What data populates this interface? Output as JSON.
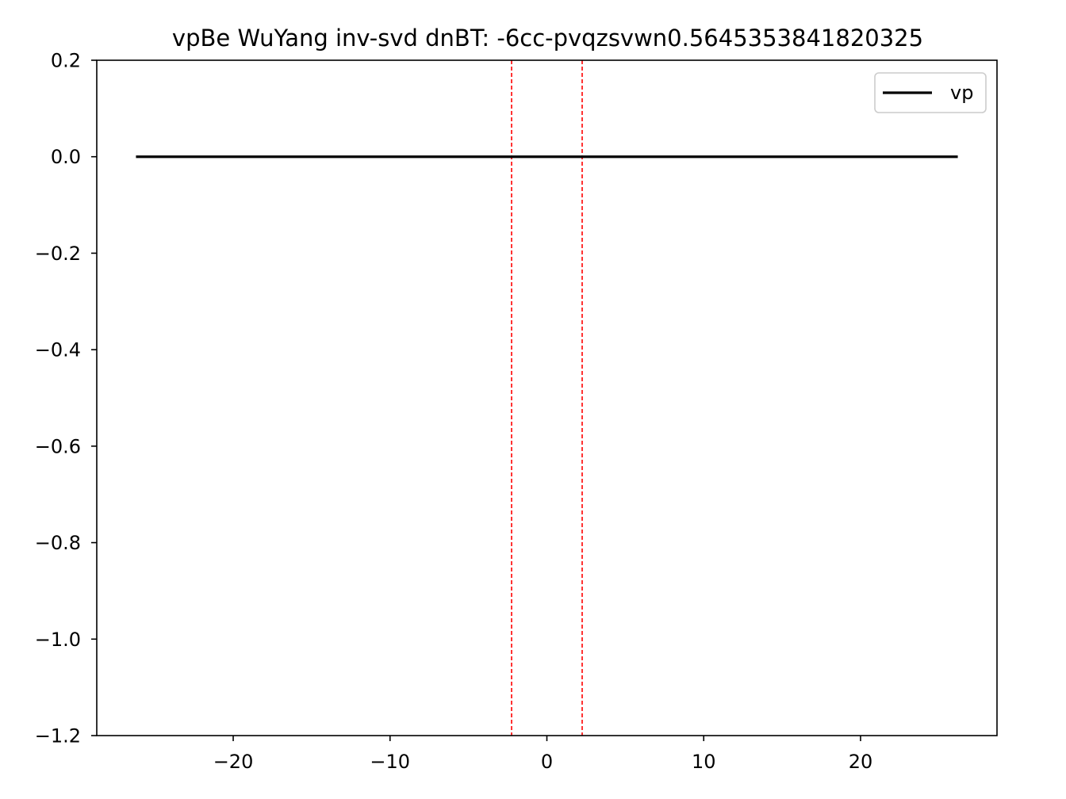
{
  "chart_data": {
    "type": "line",
    "title": "vpBe WuYang inv-svd dnBT: -6cc-pvqzsvwn0.5645353841820325",
    "xlabel": "",
    "ylabel": "",
    "xlim": [
      -28.7,
      28.7
    ],
    "ylim": [
      -1.2,
      0.2
    ],
    "xticks": [
      -20,
      -10,
      0,
      10,
      20
    ],
    "xtick_labels": [
      "−20",
      "−10",
      "0",
      "10",
      "20"
    ],
    "yticks": [
      0.2,
      0.0,
      -0.2,
      -0.4,
      -0.6,
      -0.8,
      -1.0,
      -1.2
    ],
    "ytick_labels": [
      "0.2",
      "0.0",
      "−0.2",
      "−0.4",
      "−0.6",
      "−0.8",
      "−1.0",
      "−1.2"
    ],
    "grid": false,
    "legend_position": "top-right",
    "series": [
      {
        "name": "vp",
        "color": "#000000",
        "x": [
          -26.2,
          26.2
        ],
        "y": [
          0.0,
          0.0
        ]
      }
    ],
    "vlines": [
      {
        "x": -2.25,
        "color": "#ff0000",
        "style": "dashed"
      },
      {
        "x": 2.25,
        "color": "#ff0000",
        "style": "dashed"
      }
    ]
  }
}
